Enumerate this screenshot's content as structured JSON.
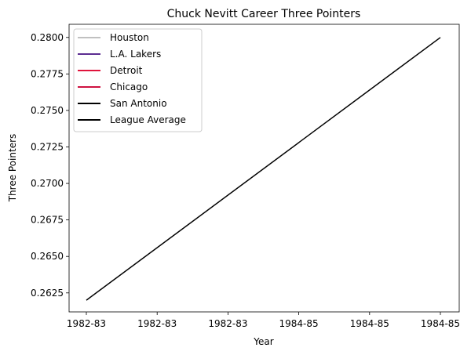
{
  "chart_data": {
    "type": "line",
    "title": "Chuck Nevitt Career Three Pointers",
    "xlabel": "Year",
    "ylabel": "Three Pointers",
    "x_tick_labels": [
      "1982-83",
      "1982-83",
      "1982-83",
      "1984-85",
      "1984-85",
      "1984-85"
    ],
    "ylim": [
      0.2612,
      0.2809
    ],
    "y_ticks": [
      "0.2625",
      "0.2650",
      "0.2675",
      "0.2700",
      "0.2725",
      "0.2750",
      "0.2775",
      "0.2800"
    ],
    "grid": false,
    "legend_position": "top-left",
    "legend": [
      {
        "label": "Houston",
        "color": "#c0c0c0"
      },
      {
        "label": "L.A. Lakers",
        "color": "#5c2d91"
      },
      {
        "label": "Detroit",
        "color": "#e0143c"
      },
      {
        "label": "Chicago",
        "color": "#ce1141"
      },
      {
        "label": "San Antonio",
        "color": "#000000"
      },
      {
        "label": "League Average",
        "color": "#000000"
      }
    ],
    "series": [
      {
        "name": "League Average",
        "color": "#000000",
        "points": [
          {
            "x": "1982-83",
            "y": 0.262
          },
          {
            "x": "1984-85",
            "y": 0.28
          }
        ]
      }
    ]
  }
}
